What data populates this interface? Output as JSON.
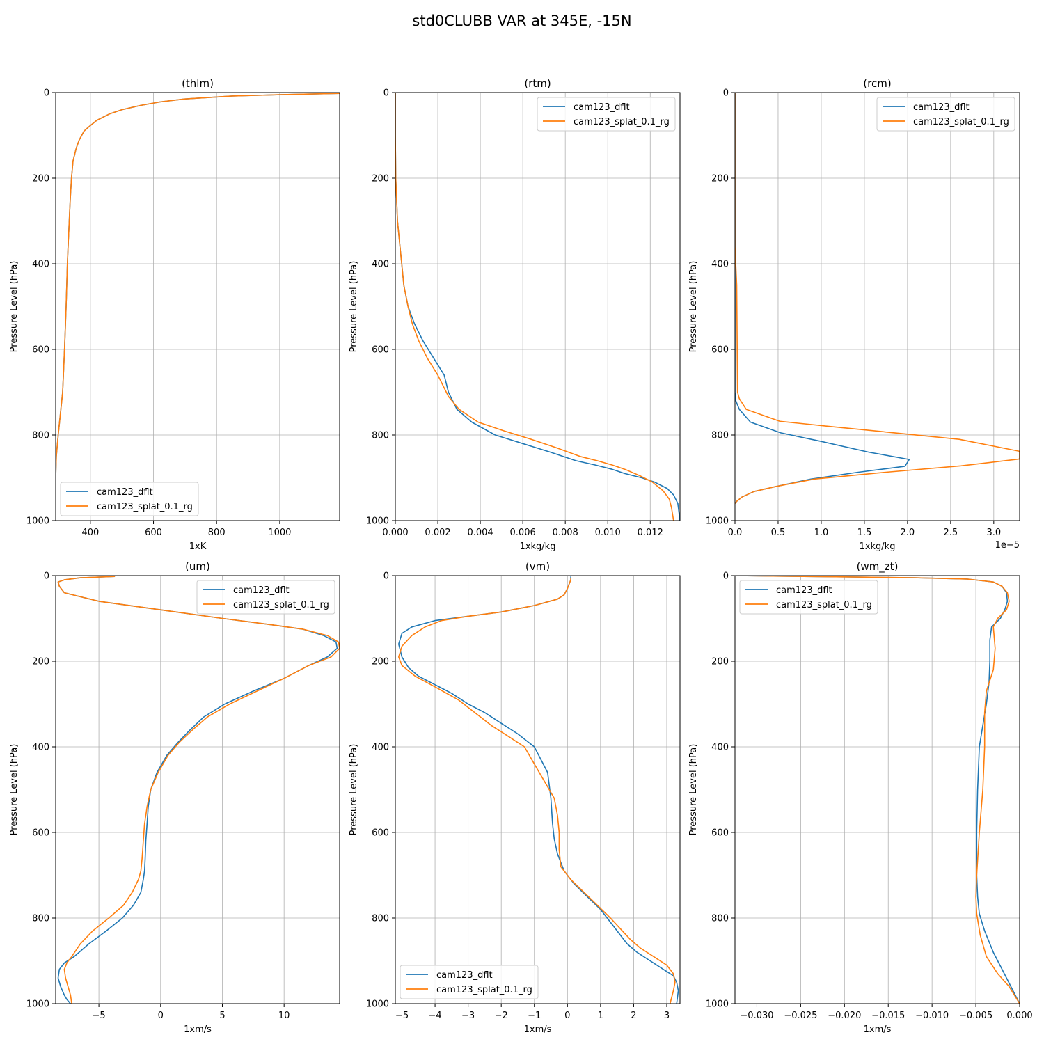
{
  "figure": {
    "title": "std0CLUBB VAR at 345E, -15N",
    "colors": {
      "cam123_dflt": "#1f77b4",
      "cam123_splat_0.1_rg": "#ff7f0e",
      "grid": "#b0b0b0"
    }
  },
  "chart_data": [
    {
      "type": "line",
      "title": "(thlm)",
      "xlabel": "1xK",
      "ylabel": "Pressure Level (hPa)",
      "xlim": [
        290,
        1190
      ],
      "ylim": [
        1000,
        0
      ],
      "xticks": [
        400,
        600,
        800,
        1000
      ],
      "xtick_labels": [
        "400",
        "600",
        "800",
        "1000"
      ],
      "yticks": [
        0,
        200,
        400,
        600,
        800,
        1000
      ],
      "ytick_labels": [
        "0",
        "200",
        "400",
        "600",
        "800",
        "1000"
      ],
      "offset_text": "",
      "grid": true,
      "legend": "lower left",
      "series": [
        {
          "name": "cam123_dflt",
          "color": "#1f77b4",
          "x": [
            1190,
            1000,
            850,
            700,
            620,
            560,
            500,
            460,
            420,
            395,
            380,
            365,
            355,
            345,
            340,
            336,
            333,
            330,
            327,
            323,
            318,
            312,
            305,
            298,
            292,
            290
          ],
          "y": [
            2,
            5,
            8,
            15,
            22,
            30,
            40,
            50,
            65,
            80,
            90,
            110,
            130,
            160,
            200,
            250,
            300,
            350,
            400,
            500,
            600,
            700,
            750,
            800,
            850,
            900
          ]
        },
        {
          "name": "cam123_splat_0.1_rg",
          "color": "#ff7f0e",
          "x": [
            1190,
            1000,
            850,
            700,
            620,
            560,
            500,
            460,
            420,
            395,
            380,
            365,
            355,
            345,
            340,
            336,
            333,
            330,
            327,
            323,
            318,
            312,
            305,
            298,
            292,
            290
          ],
          "y": [
            2,
            5,
            8,
            15,
            22,
            30,
            40,
            50,
            65,
            80,
            90,
            110,
            130,
            160,
            200,
            250,
            300,
            350,
            400,
            500,
            600,
            700,
            750,
            800,
            850,
            900
          ]
        }
      ]
    },
    {
      "type": "line",
      "title": "(rtm)",
      "xlabel": "1xkg/kg",
      "ylabel": "Pressure Level (hPa)",
      "xlim": [
        0,
        0.0134
      ],
      "ylim": [
        1000,
        0
      ],
      "xticks": [
        0,
        0.002,
        0.004,
        0.006,
        0.008,
        0.01,
        0.012
      ],
      "xtick_labels": [
        "0.000",
        "0.002",
        "0.004",
        "0.006",
        "0.008",
        "0.010",
        "0.012"
      ],
      "yticks": [
        0,
        200,
        400,
        600,
        800,
        1000
      ],
      "ytick_labels": [
        "0",
        "200",
        "400",
        "600",
        "800",
        "1000"
      ],
      "offset_text": "",
      "grid": true,
      "legend": "upper right",
      "series": [
        {
          "name": "cam123_dflt",
          "color": "#1f77b4",
          "x": [
            0,
            0,
            2e-05,
            0.0001,
            0.0002,
            0.0003,
            0.0004,
            0.0006,
            0.0009,
            0.0013,
            0.0018,
            0.0023,
            0.0025,
            0.0029,
            0.0036,
            0.0047,
            0.006,
            0.0073,
            0.0085,
            0.0094,
            0.0102,
            0.0108,
            0.0116,
            0.0122,
            0.0128,
            0.0131,
            0.0133,
            0.0134
          ],
          "y": [
            0,
            100,
            200,
            300,
            350,
            400,
            450,
            500,
            540,
            580,
            620,
            660,
            700,
            740,
            770,
            800,
            820,
            840,
            860,
            870,
            880,
            890,
            900,
            910,
            925,
            940,
            960,
            1000
          ]
        },
        {
          "name": "cam123_splat_0.1_rg",
          "color": "#ff7f0e",
          "x": [
            0,
            0,
            2e-05,
            0.0001,
            0.0002,
            0.0003,
            0.0004,
            0.0006,
            0.0008,
            0.0011,
            0.0015,
            0.002,
            0.0025,
            0.003,
            0.0039,
            0.0051,
            0.0064,
            0.0076,
            0.0087,
            0.0095,
            0.0102,
            0.0108,
            0.0115,
            0.0121,
            0.0126,
            0.0129,
            0.013,
            0.0131
          ],
          "y": [
            0,
            100,
            200,
            300,
            350,
            400,
            450,
            500,
            540,
            580,
            620,
            660,
            710,
            740,
            770,
            790,
            810,
            830,
            850,
            860,
            870,
            880,
            895,
            910,
            930,
            950,
            970,
            1000
          ]
        }
      ]
    },
    {
      "type": "line",
      "title": "(rcm)",
      "xlabel": "1xkg/kg",
      "ylabel": "Pressure Level (hPa)",
      "xlim": [
        0,
        3.3e-05
      ],
      "ylim": [
        1000,
        0
      ],
      "xticks": [
        0,
        5e-06,
        1e-05,
        1.5e-05,
        2e-05,
        2.5e-05,
        3e-05
      ],
      "xtick_labels": [
        "0.0",
        "0.5",
        "1.0",
        "1.5",
        "2.0",
        "2.5",
        "3.0"
      ],
      "yticks": [
        0,
        200,
        400,
        600,
        800,
        1000
      ],
      "ytick_labels": [
        "0",
        "200",
        "400",
        "600",
        "800",
        "1000"
      ],
      "offset_text": "1e−5",
      "grid": true,
      "legend": "upper right",
      "series": [
        {
          "name": "cam123_dflt",
          "color": "#1f77b4",
          "x": [
            0,
            0,
            0,
            1e-07,
            5e-07,
            1.8e-06,
            5.3e-06,
            1e-05,
            1.55e-05,
            2.02e-05,
            1.97e-05,
            1.43e-05,
            8.8e-06,
            4.8e-06,
            2.2e-06,
            8e-07,
            2e-07,
            0
          ],
          "y": [
            0,
            400,
            700,
            720,
            740,
            770,
            795,
            815,
            840,
            857,
            873,
            887,
            903,
            920,
            932,
            945,
            955,
            960
          ]
        },
        {
          "name": "cam123_splat_0.1_rg",
          "color": "#ff7f0e",
          "x": [
            0,
            0,
            2e-07,
            3e-07,
            5e-07,
            1.3e-06,
            5.2e-06,
            1.1e-05,
            1.85e-05,
            2.6e-05,
            3.3e-05,
            3.3e-05,
            2.62e-05,
            1.75e-05,
            9.2e-06,
            4.8e-06,
            2.2e-06,
            8e-07,
            2e-07,
            0
          ],
          "y": [
            0,
            360,
            450,
            700,
            715,
            740,
            768,
            780,
            795,
            810,
            838,
            856,
            872,
            887,
            903,
            920,
            932,
            945,
            955,
            960
          ]
        }
      ]
    },
    {
      "type": "line",
      "title": "(um)",
      "xlabel": "1xm/s",
      "ylabel": "Pressure Level (hPa)",
      "xlim": [
        -8.5,
        14.5
      ],
      "ylim": [
        1000,
        0
      ],
      "xticks": [
        -5,
        0,
        5,
        10
      ],
      "xtick_labels": [
        "−5",
        "0",
        "5",
        "10"
      ],
      "yticks": [
        0,
        200,
        400,
        600,
        800,
        1000
      ],
      "ytick_labels": [
        "0",
        "200",
        "400",
        "600",
        "800",
        "1000"
      ],
      "offset_text": "",
      "grid": true,
      "legend": "upper right",
      "series": [
        {
          "name": "cam123_dflt",
          "color": "#1f77b4",
          "x": [
            -3.7,
            -6.5,
            -7.8,
            -8.3,
            -8.2,
            -7.8,
            -5.0,
            0,
            5,
            9,
            11.5,
            13.2,
            14.2,
            14.3,
            13.5,
            12,
            10,
            7.5,
            5.2,
            3.5,
            2.4,
            1.4,
            0.5,
            -0.3,
            -0.8,
            -1.0,
            -1.1,
            -1.2,
            -1.25,
            -1.3,
            -1.4,
            -1.6,
            -2.2,
            -3.1,
            -4.4,
            -5.8,
            -7,
            -7.8,
            -8.2,
            -8.3,
            -8.1,
            -7.8,
            -7.6,
            -7.3
          ],
          "y": [
            2,
            5,
            10,
            15,
            25,
            40,
            60,
            80,
            100,
            115,
            125,
            140,
            155,
            170,
            190,
            210,
            240,
            270,
            300,
            330,
            360,
            390,
            420,
            460,
            500,
            540,
            580,
            620,
            660,
            690,
            710,
            740,
            770,
            800,
            830,
            860,
            890,
            905,
            920,
            940,
            960,
            980,
            990,
            1000
          ]
        },
        {
          "name": "cam123_splat_0.1_rg",
          "color": "#ff7f0e",
          "x": [
            -3.7,
            -6.5,
            -7.8,
            -8.3,
            -8.2,
            -7.8,
            -5.0,
            0,
            5,
            9,
            11.5,
            13.5,
            14.4,
            14.5,
            13.8,
            12,
            10,
            7.8,
            5.6,
            3.8,
            2.6,
            1.5,
            0.6,
            -0.2,
            -0.8,
            -1.1,
            -1.3,
            -1.4,
            -1.5,
            -1.6,
            -1.8,
            -2.3,
            -3.0,
            -4.2,
            -5.5,
            -6.5,
            -7.2,
            -7.6,
            -7.8,
            -7.7,
            -7.5,
            -7.3,
            -7.2
          ],
          "y": [
            2,
            5,
            10,
            15,
            25,
            40,
            60,
            80,
            100,
            115,
            125,
            140,
            155,
            170,
            190,
            210,
            240,
            270,
            300,
            330,
            360,
            390,
            420,
            460,
            500,
            540,
            580,
            620,
            660,
            690,
            710,
            740,
            770,
            800,
            830,
            860,
            890,
            905,
            920,
            940,
            960,
            980,
            1000
          ]
        }
      ]
    },
    {
      "type": "line",
      "title": "(vm)",
      "xlabel": "1xm/s",
      "ylabel": "Pressure Level (hPa)",
      "xlim": [
        -5.2,
        3.4
      ],
      "ylim": [
        1000,
        0
      ],
      "xticks": [
        -5,
        -4,
        -3,
        -2,
        -1,
        0,
        1,
        2,
        3
      ],
      "xtick_labels": [
        "−5",
        "−4",
        "−3",
        "−2",
        "−1",
        "0",
        "1",
        "2",
        "3"
      ],
      "yticks": [
        0,
        200,
        400,
        600,
        800,
        1000
      ],
      "ytick_labels": [
        "0",
        "200",
        "400",
        "600",
        "800",
        "1000"
      ],
      "offset_text": "",
      "grid": true,
      "legend": "lower left",
      "series": [
        {
          "name": "cam123_dflt",
          "color": "#1f77b4",
          "x": [
            0.1,
            0.1,
            0,
            -0.1,
            -0.3,
            -1,
            -2,
            -3,
            -4,
            -4.7,
            -5.0,
            -5.1,
            -5.0,
            -4.8,
            -4.5,
            -4.0,
            -3.5,
            -3.0,
            -2.5,
            -2.0,
            -1.5,
            -1.0,
            -0.8,
            -0.6,
            -0.5,
            -0.45,
            -0.4,
            -0.3,
            -0.1,
            0.2,
            0.6,
            1.0,
            1.2,
            1.4,
            1.6,
            1.8,
            2.1,
            2.5,
            2.9,
            3.2,
            3.3,
            3.35,
            3.3
          ],
          "y": [
            2,
            10,
            30,
            45,
            55,
            70,
            85,
            95,
            105,
            120,
            135,
            160,
            190,
            215,
            235,
            255,
            275,
            300,
            320,
            345,
            370,
            400,
            430,
            460,
            520,
            580,
            615,
            650,
            690,
            720,
            750,
            780,
            800,
            820,
            840,
            860,
            880,
            900,
            920,
            935,
            950,
            970,
            1000
          ]
        },
        {
          "name": "cam123_splat_0.1_rg",
          "color": "#ff7f0e",
          "x": [
            0.1,
            0.1,
            0,
            -0.1,
            -0.3,
            -1,
            -2,
            -3,
            -3.8,
            -4.3,
            -4.7,
            -5.0,
            -5.1,
            -5.0,
            -4.6,
            -4.0,
            -3.3,
            -2.8,
            -2.3,
            -1.8,
            -1.3,
            -1.0,
            -0.7,
            -0.4,
            -0.3,
            -0.25,
            -0.25,
            -0.2,
            0.1,
            0.5,
            0.9,
            1.3,
            1.6,
            1.9,
            2.2,
            2.6,
            3.0,
            3.2,
            3.25,
            3.2,
            3.1
          ],
          "y": [
            5,
            10,
            30,
            45,
            55,
            70,
            85,
            95,
            105,
            120,
            140,
            165,
            190,
            210,
            235,
            260,
            290,
            320,
            350,
            375,
            400,
            440,
            480,
            520,
            560,
            600,
            640,
            680,
            710,
            740,
            770,
            800,
            825,
            850,
            870,
            890,
            910,
            930,
            950,
            970,
            1000
          ]
        }
      ]
    },
    {
      "type": "line",
      "title": "(wm_zt)",
      "xlabel": "1xm/s",
      "ylabel": "Pressure Level (hPa)",
      "xlim": [
        -0.0325,
        0
      ],
      "ylim": [
        1000,
        0
      ],
      "xticks": [
        -0.03,
        -0.025,
        -0.02,
        -0.015,
        -0.01,
        -0.005,
        0.0
      ],
      "xtick_labels": [
        "−0.030",
        "−0.025",
        "−0.020",
        "−0.015",
        "−0.010",
        "−0.005",
        "0.000"
      ],
      "yticks": [
        0,
        200,
        400,
        600,
        800,
        1000
      ],
      "ytick_labels": [
        "0",
        "200",
        "400",
        "600",
        "800",
        "1000"
      ],
      "offset_text": "",
      "grid": true,
      "legend": "upper left",
      "series": [
        {
          "name": "cam123_dflt",
          "color": "#1f77b4",
          "x": [
            -0.0325,
            -0.029,
            -0.02,
            -0.012,
            -0.006,
            -0.003,
            -0.002,
            -0.0015,
            -0.0014,
            -0.0017,
            -0.0022,
            -0.0032,
            -0.0034,
            -0.0034,
            -0.0035,
            -0.0038,
            -0.0042,
            -0.0046,
            -0.0048,
            -0.0049,
            -0.0049,
            -0.0048,
            -0.0046,
            -0.004,
            -0.003,
            -0.002,
            -0.001,
            0
          ],
          "y": [
            0,
            1,
            3,
            5,
            8,
            15,
            25,
            40,
            60,
            80,
            100,
            120,
            150,
            200,
            250,
            300,
            350,
            400,
            500,
            600,
            700,
            750,
            790,
            830,
            880,
            920,
            960,
            1000
          ]
        },
        {
          "name": "cam123_splat_0.1_rg",
          "color": "#ff7f0e",
          "x": [
            -0.0325,
            -0.029,
            -0.02,
            -0.012,
            -0.006,
            -0.003,
            -0.002,
            -0.0014,
            -0.0012,
            -0.0015,
            -0.0025,
            -0.003,
            -0.0028,
            -0.003,
            -0.0038,
            -0.004,
            -0.004,
            -0.0042,
            -0.0046,
            -0.0049,
            -0.005,
            -0.0049,
            -0.0045,
            -0.0038,
            -0.0025,
            -0.0012,
            0
          ],
          "y": [
            0,
            1,
            3,
            5,
            8,
            15,
            25,
            40,
            60,
            80,
            100,
            120,
            170,
            220,
            270,
            320,
            400,
            500,
            600,
            700,
            750,
            790,
            840,
            890,
            930,
            960,
            1000
          ]
        }
      ]
    }
  ]
}
